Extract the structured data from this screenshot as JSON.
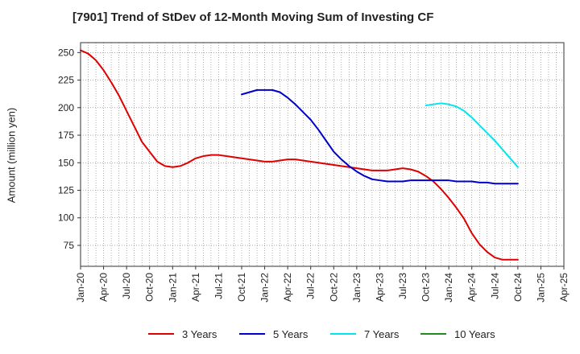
{
  "chart_data": {
    "type": "line",
    "title": "[7901]  Trend of StDev of 12-Month Moving Sum of Investing CF",
    "xlabel": "",
    "ylabel": "Amount (million yen)",
    "x_tick_labels": [
      "Jan-20",
      "Apr-20",
      "Jul-20",
      "Oct-20",
      "Jan-21",
      "Apr-21",
      "Jul-21",
      "Oct-21",
      "Jan-22",
      "Apr-22",
      "Jul-22",
      "Oct-22",
      "Jan-23",
      "Apr-23",
      "Jul-23",
      "Oct-23",
      "Jan-24",
      "Apr-24",
      "Jul-24",
      "Oct-24",
      "Jan-25",
      "Apr-25"
    ],
    "x_range": [
      "2020-01",
      "2025-04"
    ],
    "y_ticks": [
      75,
      100,
      125,
      150,
      175,
      200,
      225,
      250
    ],
    "ylim": [
      56,
      259
    ],
    "grid": true,
    "legend_position": "bottom",
    "series": [
      {
        "name": "3 Years",
        "color": "#e00000",
        "points": [
          [
            "2020-01",
            252
          ],
          [
            "2020-02",
            249
          ],
          [
            "2020-03",
            243
          ],
          [
            "2020-04",
            234
          ],
          [
            "2020-05",
            223
          ],
          [
            "2020-06",
            211
          ],
          [
            "2020-07",
            197
          ],
          [
            "2020-08",
            183
          ],
          [
            "2020-09",
            169
          ],
          [
            "2020-10",
            160
          ],
          [
            "2020-11",
            151
          ],
          [
            "2020-12",
            147
          ],
          [
            "2021-01",
            146
          ],
          [
            "2021-02",
            147
          ],
          [
            "2021-03",
            150
          ],
          [
            "2021-04",
            154
          ],
          [
            "2021-05",
            156
          ],
          [
            "2021-06",
            157
          ],
          [
            "2021-07",
            157
          ],
          [
            "2021-08",
            156
          ],
          [
            "2021-09",
            155
          ],
          [
            "2021-10",
            154
          ],
          [
            "2021-11",
            153
          ],
          [
            "2021-12",
            152
          ],
          [
            "2022-01",
            151
          ],
          [
            "2022-02",
            151
          ],
          [
            "2022-03",
            152
          ],
          [
            "2022-04",
            153
          ],
          [
            "2022-05",
            153
          ],
          [
            "2022-06",
            152
          ],
          [
            "2022-07",
            151
          ],
          [
            "2022-08",
            150
          ],
          [
            "2022-09",
            149
          ],
          [
            "2022-10",
            148
          ],
          [
            "2022-11",
            147
          ],
          [
            "2022-12",
            146
          ],
          [
            "2023-01",
            145
          ],
          [
            "2023-02",
            144
          ],
          [
            "2023-03",
            143
          ],
          [
            "2023-04",
            143
          ],
          [
            "2023-05",
            143
          ],
          [
            "2023-06",
            144
          ],
          [
            "2023-07",
            145
          ],
          [
            "2023-08",
            144
          ],
          [
            "2023-09",
            142
          ],
          [
            "2023-10",
            138
          ],
          [
            "2023-11",
            133
          ],
          [
            "2023-12",
            126
          ],
          [
            "2024-01",
            118
          ],
          [
            "2024-02",
            109
          ],
          [
            "2024-03",
            99
          ],
          [
            "2024-04",
            86
          ],
          [
            "2024-05",
            76
          ],
          [
            "2024-06",
            69
          ],
          [
            "2024-07",
            64
          ],
          [
            "2024-08",
            62
          ],
          [
            "2024-09",
            62
          ],
          [
            "2024-10",
            62
          ]
        ]
      },
      {
        "name": "5 Years",
        "color": "#0000cc",
        "points": [
          [
            "2021-10",
            212
          ],
          [
            "2021-11",
            214
          ],
          [
            "2021-12",
            216
          ],
          [
            "2022-01",
            216
          ],
          [
            "2022-02",
            216
          ],
          [
            "2022-03",
            214
          ],
          [
            "2022-04",
            209
          ],
          [
            "2022-05",
            203
          ],
          [
            "2022-06",
            196
          ],
          [
            "2022-07",
            189
          ],
          [
            "2022-08",
            180
          ],
          [
            "2022-09",
            170
          ],
          [
            "2022-10",
            160
          ],
          [
            "2022-11",
            153
          ],
          [
            "2022-12",
            147
          ],
          [
            "2023-01",
            142
          ],
          [
            "2023-02",
            138
          ],
          [
            "2023-03",
            135
          ],
          [
            "2023-04",
            134
          ],
          [
            "2023-05",
            133
          ],
          [
            "2023-06",
            133
          ],
          [
            "2023-07",
            133
          ],
          [
            "2023-08",
            134
          ],
          [
            "2023-09",
            134
          ],
          [
            "2023-10",
            134
          ],
          [
            "2023-11",
            134
          ],
          [
            "2023-12",
            134
          ],
          [
            "2024-01",
            134
          ],
          [
            "2024-02",
            133
          ],
          [
            "2024-03",
            133
          ],
          [
            "2024-04",
            133
          ],
          [
            "2024-05",
            132
          ],
          [
            "2024-06",
            132
          ],
          [
            "2024-07",
            131
          ],
          [
            "2024-08",
            131
          ],
          [
            "2024-09",
            131
          ],
          [
            "2024-10",
            131
          ]
        ]
      },
      {
        "name": "7 Years",
        "color": "#00e5ee",
        "points": [
          [
            "2023-10",
            202
          ],
          [
            "2023-11",
            203
          ],
          [
            "2023-12",
            204
          ],
          [
            "2024-01",
            203
          ],
          [
            "2024-02",
            201
          ],
          [
            "2024-03",
            197
          ],
          [
            "2024-04",
            191
          ],
          [
            "2024-05",
            184
          ],
          [
            "2024-06",
            177
          ],
          [
            "2024-07",
            170
          ],
          [
            "2024-08",
            162
          ],
          [
            "2024-09",
            154
          ],
          [
            "2024-10",
            146
          ]
        ]
      },
      {
        "name": "10 Years",
        "color": "#228b22",
        "points": []
      }
    ]
  }
}
